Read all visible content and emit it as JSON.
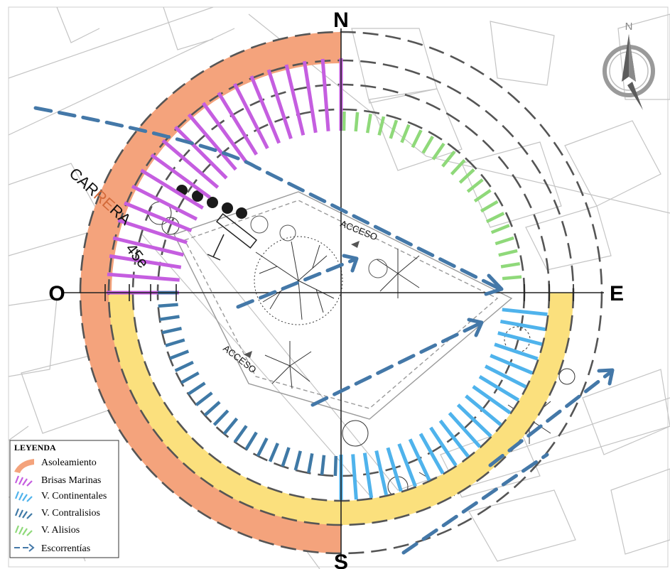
{
  "cardinals": {
    "north": "N",
    "south": "S",
    "east": "E",
    "west": "O"
  },
  "compass": {
    "label": "N"
  },
  "street": {
    "part1": "CAR",
    "part2": "RE",
    "part3": "RA",
    "number": "45e"
  },
  "accesses": {
    "upper": "ACCESO",
    "lower": "ACCESO"
  },
  "legend": {
    "title": "LEYENDA",
    "items": [
      {
        "label": "Asoleamiento",
        "color": "#f4a37c"
      },
      {
        "label": "Brisas Marinas",
        "color": "#c55ee0"
      },
      {
        "label": "V. Continentales",
        "color": "#4fb3ec"
      },
      {
        "label": "V. Contralisios",
        "color": "#3f79a6"
      },
      {
        "label": "V. Alisios",
        "color": "#8fd97a"
      },
      {
        "label": "Escorrentías",
        "color": "#4478a8"
      }
    ]
  },
  "colors": {
    "asoleamiento_orange": "#f4a37c",
    "asoleamiento_yellow": "#fbe07d",
    "brisas": "#c55ee0",
    "continentales": "#4fb3ec",
    "contralisios": "#3f79a6",
    "alisios": "#8fd97a",
    "escorrentias": "#4478a8"
  }
}
